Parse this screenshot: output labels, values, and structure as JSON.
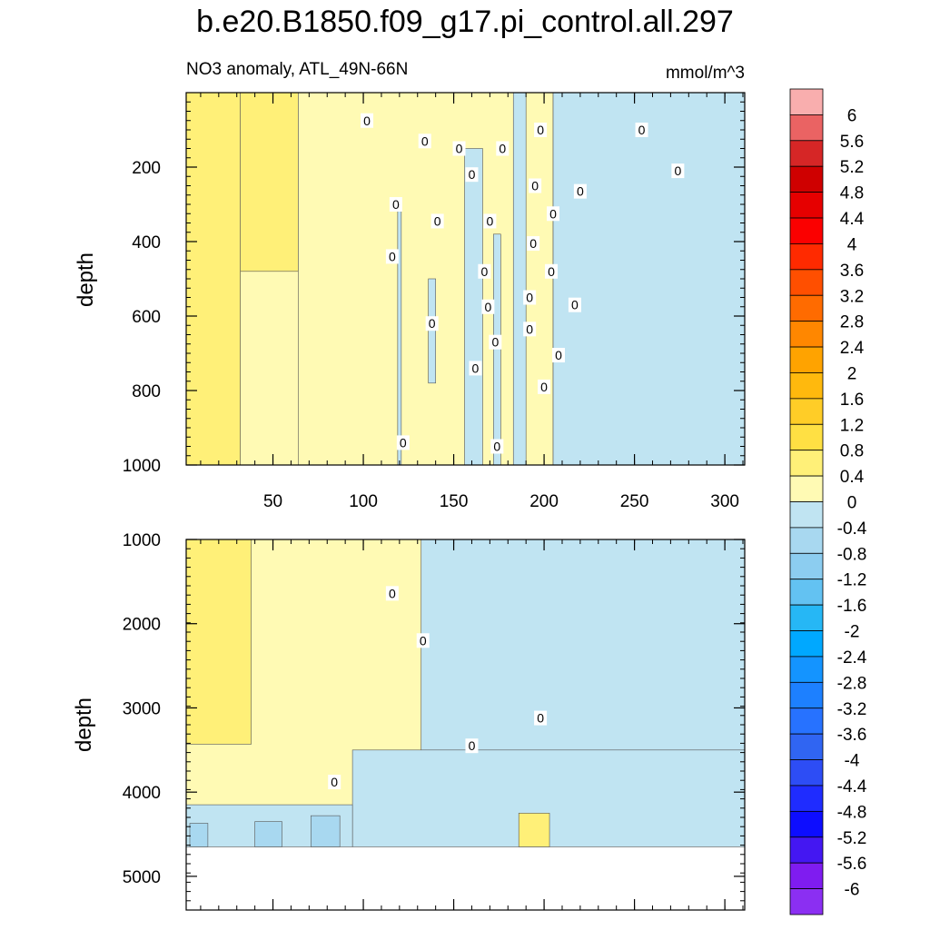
{
  "chart_data": {
    "type": "contour",
    "title": "b.e20.B1850.f09_g17.pi_control.all.297",
    "subtitle_left": "NO3 anomaly, ATL_49N-66N",
    "units": "mmol/m^3",
    "xlim": [
      2,
      311
    ],
    "x_ticks": [
      50,
      100,
      150,
      200,
      250,
      300
    ],
    "x_tick_labels": [
      "50",
      "100",
      "150",
      "200",
      "250",
      "300"
    ],
    "panels": [
      {
        "name": "upper",
        "ylabel": "depth",
        "ylim": [
          0,
          1000
        ],
        "y_ticks": [
          200,
          400,
          600,
          800,
          1000
        ],
        "y_tick_labels": [
          "200",
          "400",
          "600",
          "800",
          "1000"
        ],
        "regions": [
          {
            "level": 0.6,
            "x0": 2,
            "x1": 32,
            "y0": 0,
            "y1": 1000
          },
          {
            "level": 0.6,
            "x0": 32,
            "x1": 64,
            "y0": 0,
            "y1": 480
          },
          {
            "level": 0.2,
            "x0": 32,
            "x1": 68,
            "y0": 480,
            "y1": 1000
          },
          {
            "level": 0.2,
            "x0": 64,
            "x1": 205,
            "y0": 0,
            "y1": 1000
          },
          {
            "level": -0.2,
            "x0": 119,
            "x1": 121,
            "y0": 300,
            "y1": 1000
          },
          {
            "level": -0.2,
            "x0": 136,
            "x1": 140,
            "y0": 500,
            "y1": 780
          },
          {
            "level": -0.2,
            "x0": 156,
            "x1": 166,
            "y0": 150,
            "y1": 1000
          },
          {
            "level": -0.2,
            "x0": 172,
            "x1": 176,
            "y0": 380,
            "y1": 1000
          },
          {
            "level": -0.2,
            "x0": 183,
            "x1": 190,
            "y0": 0,
            "y1": 1000
          },
          {
            "level": -0.2,
            "x0": 205,
            "x1": 311,
            "y0": 0,
            "y1": 1000
          }
        ],
        "contour_labels": [
          {
            "x": 102,
            "y": 75,
            "text": "0"
          },
          {
            "x": 134,
            "y": 130,
            "text": "0"
          },
          {
            "x": 153,
            "y": 150,
            "text": "0"
          },
          {
            "x": 177,
            "y": 150,
            "text": "0"
          },
          {
            "x": 198,
            "y": 100,
            "text": "0"
          },
          {
            "x": 254,
            "y": 100,
            "text": "0"
          },
          {
            "x": 160,
            "y": 220,
            "text": "0"
          },
          {
            "x": 195,
            "y": 250,
            "text": "0"
          },
          {
            "x": 220,
            "y": 265,
            "text": "0"
          },
          {
            "x": 274,
            "y": 210,
            "text": "0"
          },
          {
            "x": 118,
            "y": 300,
            "text": "0"
          },
          {
            "x": 141,
            "y": 345,
            "text": "0"
          },
          {
            "x": 170,
            "y": 345,
            "text": "0"
          },
          {
            "x": 205,
            "y": 325,
            "text": "0"
          },
          {
            "x": 194,
            "y": 405,
            "text": "0"
          },
          {
            "x": 116,
            "y": 440,
            "text": "0"
          },
          {
            "x": 167,
            "y": 480,
            "text": "0"
          },
          {
            "x": 204,
            "y": 480,
            "text": "0"
          },
          {
            "x": 192,
            "y": 550,
            "text": "0"
          },
          {
            "x": 169,
            "y": 575,
            "text": "0"
          },
          {
            "x": 217,
            "y": 570,
            "text": "0"
          },
          {
            "x": 138,
            "y": 620,
            "text": "0"
          },
          {
            "x": 192,
            "y": 635,
            "text": "0"
          },
          {
            "x": 173,
            "y": 670,
            "text": "0"
          },
          {
            "x": 208,
            "y": 705,
            "text": "0"
          },
          {
            "x": 162,
            "y": 740,
            "text": "0"
          },
          {
            "x": 200,
            "y": 790,
            "text": "0"
          },
          {
            "x": 122,
            "y": 940,
            "text": "0"
          },
          {
            "x": 174,
            "y": 950,
            "text": "0"
          }
        ]
      },
      {
        "name": "lower",
        "ylabel": "depth",
        "ylim": [
          1000,
          5400
        ],
        "y_ticks": [
          1000,
          2000,
          3000,
          4000,
          5000
        ],
        "y_tick_labels": [
          "1000",
          "2000",
          "3000",
          "4000",
          "5000"
        ],
        "data_bottom": 4650,
        "regions": [
          {
            "level": 0.6,
            "x0": 2,
            "x1": 38,
            "y0": 1000,
            "y1": 3430
          },
          {
            "level": -0.2,
            "x0": 132,
            "x1": 311,
            "y0": 1000,
            "y1": 3500
          },
          {
            "level": -0.2,
            "x0": 94,
            "x1": 311,
            "y0": 3500,
            "y1": 4650
          },
          {
            "level": -0.2,
            "x0": 2,
            "x1": 94,
            "y0": 4150,
            "y1": 4650
          },
          {
            "level": -0.6,
            "x0": 4,
            "x1": 14,
            "y0": 4370,
            "y1": 4650
          },
          {
            "level": -0.6,
            "x0": 40,
            "x1": 55,
            "y0": 4350,
            "y1": 4650
          },
          {
            "level": -0.6,
            "x0": 71,
            "x1": 87,
            "y0": 4280,
            "y1": 4650
          },
          {
            "level": 0.6,
            "x0": 186,
            "x1": 203,
            "y0": 4250,
            "y1": 4650
          }
        ],
        "contour_labels": [
          {
            "x": 116,
            "y": 1640,
            "text": "0"
          },
          {
            "x": 133,
            "y": 2200,
            "text": "0"
          },
          {
            "x": 198,
            "y": 3120,
            "text": "0"
          },
          {
            "x": 160,
            "y": 3450,
            "text": "0"
          },
          {
            "x": 84,
            "y": 3880,
            "text": "0"
          }
        ]
      }
    ],
    "colorbar": {
      "levels": [
        "6",
        "5.6",
        "5.2",
        "4.8",
        "4.4",
        "4",
        "3.6",
        "3.2",
        "2.8",
        "2.4",
        "2",
        "1.6",
        "1.2",
        "0.8",
        "0.4",
        "0",
        "-0.4",
        "-0.8",
        "-1.2",
        "-1.6",
        "-2",
        "-2.4",
        "-2.8",
        "-3.2",
        "-3.6",
        "-4",
        "-4.4",
        "-4.8",
        "-5.2",
        "-5.6",
        "-6"
      ],
      "colors": [
        "#f9aeae",
        "#ea6363",
        "#d62626",
        "#cf0000",
        "#e60000",
        "#fb0000",
        "#ff2a00",
        "#ff4f00",
        "#ff6b00",
        "#ff8700",
        "#ffa300",
        "#ffb90d",
        "#ffcd27",
        "#ffe043",
        "#fff078",
        "#fffab4",
        "#c0e4f2",
        "#a8d8f0",
        "#8ccdf0",
        "#63c2f2",
        "#26b7f5",
        "#00a8ff",
        "#1494ff",
        "#1d80ff",
        "#2772ff",
        "#3065f2",
        "#2d4df5",
        "#1f2cff",
        "#0d0dff",
        "#4417f2",
        "#7f1cf0",
        "#8b2ff2"
      ]
    }
  }
}
